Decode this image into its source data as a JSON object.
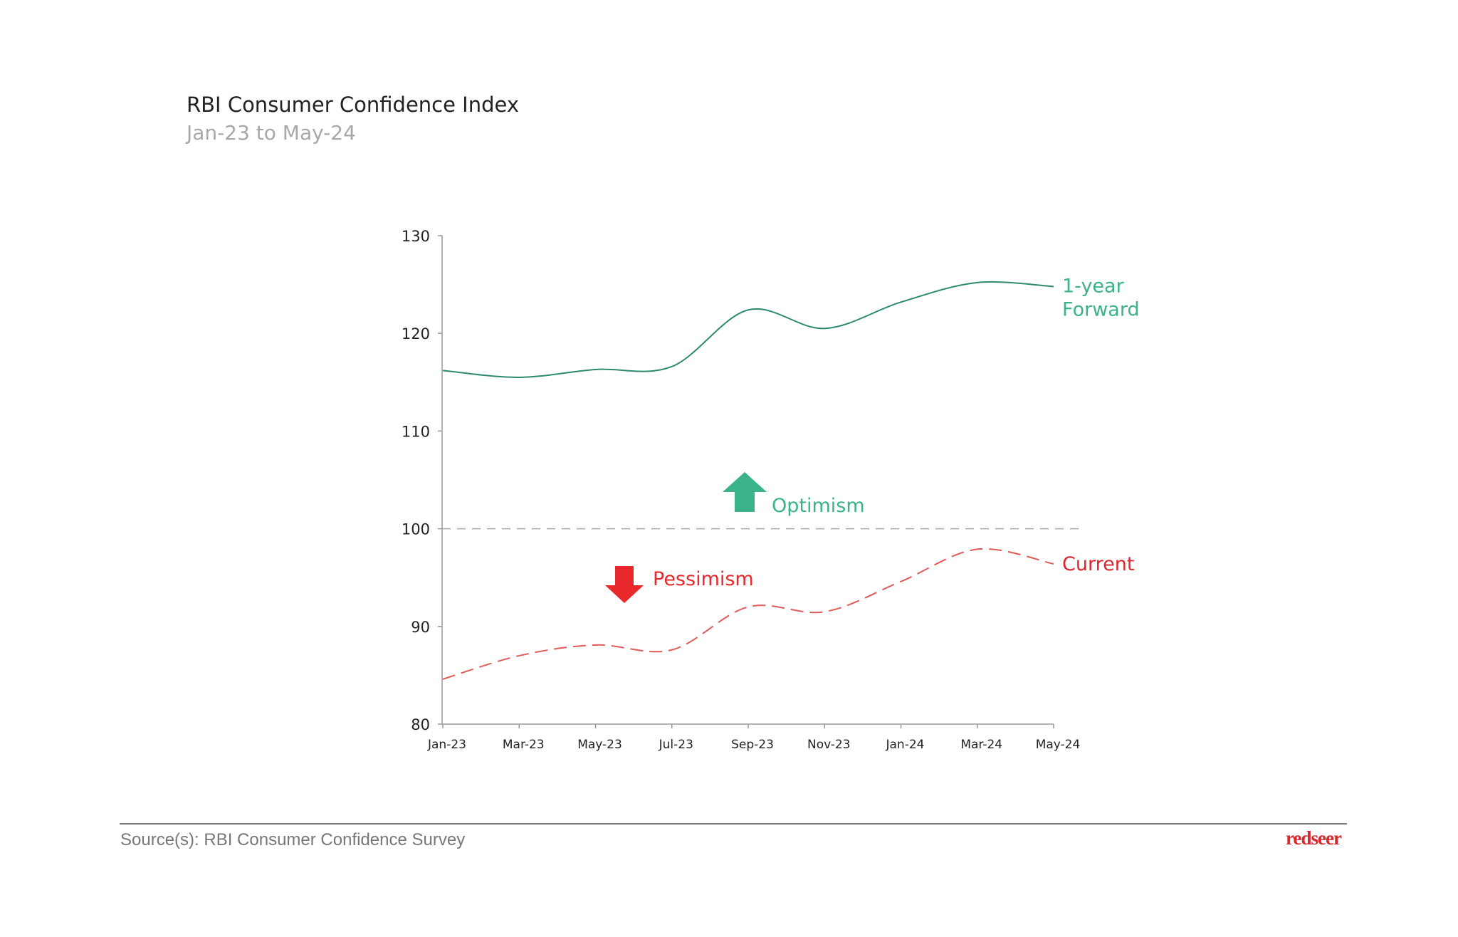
{
  "header": {
    "title": "RBI Consumer Confidence Index",
    "subtitle": "Jan-23 to May-24"
  },
  "chart_data": {
    "type": "line",
    "title": "RBI Consumer Confidence Index",
    "subtitle": "Jan-23 to May-24",
    "categories": [
      "Jan-23",
      "Mar-23",
      "May-23",
      "Jul-23",
      "Sep-23",
      "Nov-23",
      "Jan-24",
      "Mar-24",
      "May-24"
    ],
    "yticks": [
      80,
      90,
      100,
      110,
      120,
      130
    ],
    "ylim": [
      80,
      130
    ],
    "grid": false,
    "reference_line": 100,
    "series": [
      {
        "name": "1-year Forward",
        "label_lines": [
          "1-year",
          "Forward"
        ],
        "color": "#2e8a6e",
        "label_color": "#3bb388",
        "style": "solid",
        "values": [
          116.2,
          115.5,
          116.3,
          116.6,
          122.4,
          120.5,
          123.2,
          125.2,
          124.8
        ]
      },
      {
        "name": "Current",
        "label_lines": [
          "Current"
        ],
        "color": "#e05a5a",
        "label_color": "#d9272e",
        "style": "dashed",
        "values": [
          84.6,
          87.0,
          88.1,
          87.6,
          92.0,
          91.5,
          94.6,
          97.9,
          96.4
        ]
      }
    ],
    "annotations": [
      {
        "text": "Optimism",
        "icon": "arrow-up-icon",
        "color": "#3bb388"
      },
      {
        "text": "Pessimism",
        "icon": "arrow-down-icon",
        "color": "#e8282b"
      }
    ]
  },
  "footer": {
    "source": "Source(s): RBI Consumer Confidence Survey",
    "logo": "redseer"
  }
}
